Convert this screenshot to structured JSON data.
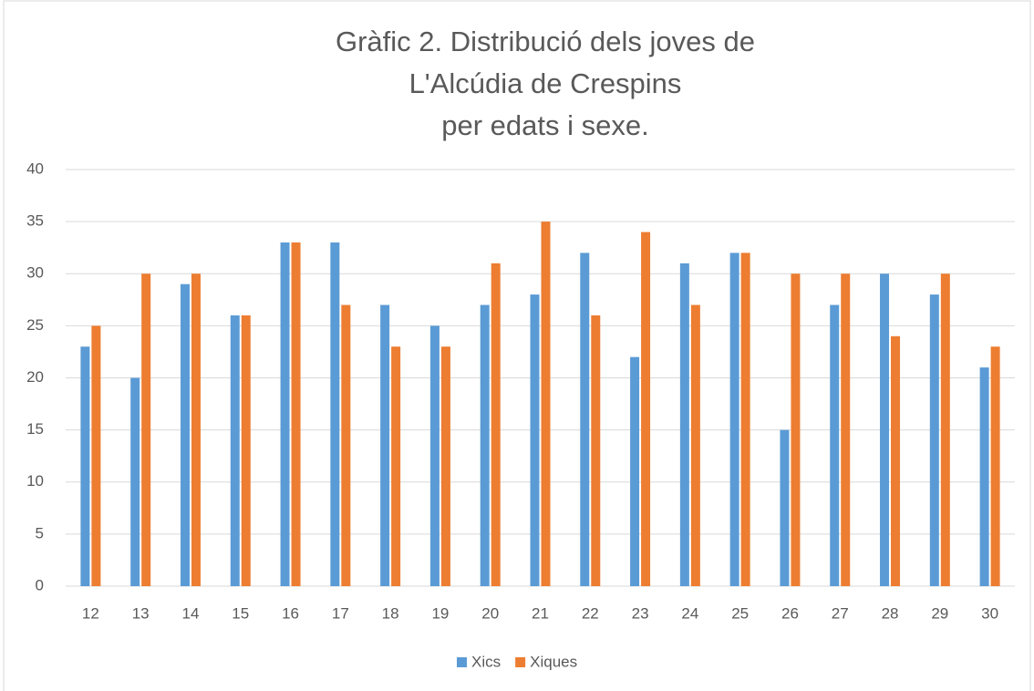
{
  "chart_data": {
    "type": "bar",
    "title": [
      "Gràfic 2. Distribució dels joves de",
      "L'Alcúdia de Crespins",
      "per edats i sexe."
    ],
    "categories": [
      "12",
      "13",
      "14",
      "15",
      "16",
      "17",
      "18",
      "19",
      "20",
      "21",
      "22",
      "23",
      "24",
      "25",
      "26",
      "27",
      "28",
      "29",
      "30"
    ],
    "series": [
      {
        "name": "Xics",
        "color": "#5b9bd5",
        "values": [
          23,
          20,
          29,
          26,
          33,
          33,
          27,
          25,
          27,
          28,
          32,
          22,
          31,
          32,
          15,
          27,
          30,
          28,
          21
        ]
      },
      {
        "name": "Xiques",
        "color": "#ed7d31",
        "values": [
          25,
          30,
          30,
          26,
          33,
          27,
          23,
          23,
          31,
          35,
          26,
          34,
          27,
          32,
          30,
          30,
          24,
          30,
          23
        ]
      }
    ],
    "ylim": [
      0,
      40
    ],
    "yticks": [
      0,
      5,
      10,
      15,
      20,
      25,
      30,
      35,
      40
    ],
    "grid": true,
    "legend": "bottom"
  }
}
